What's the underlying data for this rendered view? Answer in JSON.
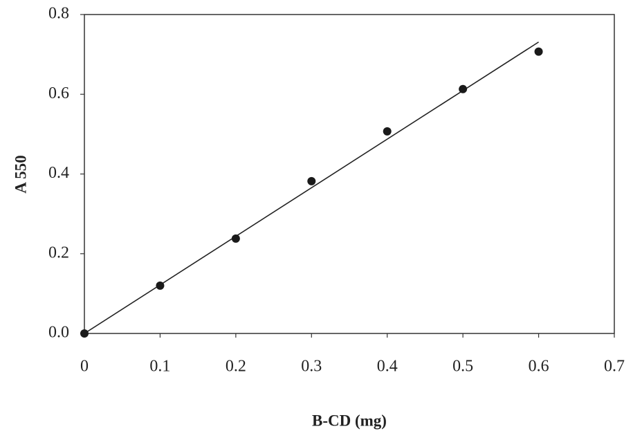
{
  "chart_data": {
    "type": "scatter",
    "x_label": "B-CD (mg)",
    "y_label": "A 550",
    "x": [
      0,
      0.1,
      0.2,
      0.3,
      0.4,
      0.5,
      0.6
    ],
    "series": [
      {
        "color": "#1a1a1a",
        "values": [
          0,
          0.12,
          0.238,
          0.382,
          0.507,
          0.613,
          0.707
        ]
      }
    ],
    "trendline": {
      "x": [
        0,
        0.6
      ],
      "values": [
        0,
        0.731
      ],
      "color": "#222222"
    },
    "xlim": [
      0,
      0.7
    ],
    "xticks": [
      0,
      0.1,
      0.2,
      0.3,
      0.4,
      0.5,
      0.6,
      0.7
    ],
    "ylim": [
      0,
      0.8
    ],
    "yticks": [
      {
        "value": 0,
        "label": "0.0"
      },
      0.2,
      0.4,
      0.6,
      0.8
    ],
    "grid": false
  }
}
